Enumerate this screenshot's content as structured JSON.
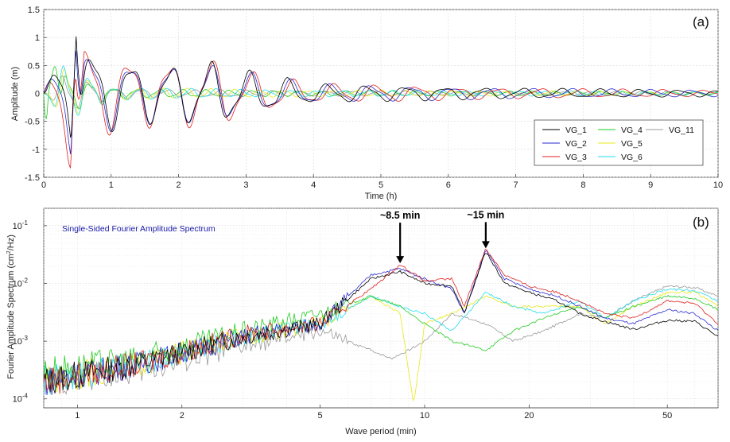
{
  "chart_data": [
    {
      "panel": "(a)",
      "type": "line",
      "xlabel": "Time (h)",
      "ylabel": "Amplitude (m)",
      "xlim": [
        0,
        10
      ],
      "ylim": [
        -1.5,
        1.5
      ],
      "xticks": [
        0,
        1,
        2,
        3,
        4,
        5,
        6,
        7,
        8,
        9,
        10
      ],
      "yticks": [
        -1.5,
        -1,
        -0.5,
        0,
        0.5,
        1,
        1.5
      ],
      "grid": true,
      "legend_position": "bottom-right",
      "series": [
        {
          "name": "VG_1",
          "color": "#000000",
          "x": [
            0,
            0.4,
            0.48,
            0.6,
            1.0,
            1.5,
            2.0,
            2.5,
            3.0,
            4.0,
            5.0,
            6.0,
            7.0,
            8.0,
            9.0,
            10.0
          ],
          "y": [
            0,
            0.95,
            -0.9,
            0.7,
            0.55,
            0.45,
            0.45,
            0.5,
            0.35,
            0.15,
            0.12,
            0.1,
            0.08,
            0.07,
            0.06,
            0.05
          ]
        },
        {
          "name": "VG_2",
          "color": "#2a2ad0",
          "x": [
            0,
            0.4,
            0.48,
            0.6,
            1.0,
            1.5,
            2.0,
            2.5,
            3.0,
            4.0,
            5.0,
            6.0,
            7.0,
            8.0,
            9.0,
            10.0
          ],
          "y": [
            0,
            1.0,
            -0.95,
            0.65,
            0.55,
            0.45,
            0.45,
            0.45,
            0.33,
            0.15,
            0.12,
            0.1,
            0.08,
            0.07,
            0.06,
            0.05
          ]
        },
        {
          "name": "VG_3",
          "color": "#e02020",
          "x": [
            0,
            0.4,
            0.48,
            0.6,
            1.0,
            1.5,
            2.0,
            2.5,
            3.0,
            4.0,
            5.0,
            6.0,
            7.0,
            8.0,
            9.0,
            10.0
          ],
          "y": [
            0,
            1.2,
            -0.85,
            0.75,
            0.6,
            0.5,
            0.5,
            0.55,
            0.35,
            0.15,
            0.13,
            0.1,
            0.08,
            0.07,
            0.06,
            0.05
          ]
        },
        {
          "name": "VG_4",
          "color": "#22cc22",
          "x": [
            0,
            0.05,
            0.3,
            1.0,
            2.0,
            3.0,
            4.0,
            5.0,
            6.0,
            7.0,
            8.0,
            9.0,
            10.0
          ],
          "y": [
            0,
            -1.2,
            0.3,
            0.08,
            0.06,
            0.05,
            0.04,
            0.04,
            0.04,
            0.04,
            0.03,
            0.03,
            0.03
          ]
        },
        {
          "name": "VG_5",
          "color": "#e8e81a",
          "x": [
            0,
            0.3,
            1.0,
            2.0,
            3.0,
            4.0,
            5.0,
            6.0,
            7.0,
            8.0,
            9.0,
            10.0
          ],
          "y": [
            0,
            0.4,
            0.1,
            0.08,
            0.06,
            0.05,
            0.05,
            0.04,
            0.04,
            0.04,
            0.03,
            0.03
          ]
        },
        {
          "name": "VG_6",
          "color": "#22ddee",
          "x": [
            0,
            0.3,
            1.0,
            2.0,
            3.0,
            4.0,
            5.0,
            6.0,
            7.0,
            8.0,
            9.0,
            10.0
          ],
          "y": [
            0,
            0.45,
            0.1,
            0.08,
            0.06,
            0.05,
            0.05,
            0.04,
            0.04,
            0.04,
            0.03,
            0.03
          ]
        },
        {
          "name": "VG_11",
          "color": "#999999",
          "x": [
            0,
            0.3,
            1.0,
            2.0,
            3.0,
            4.0,
            5.0,
            6.0,
            7.0,
            8.0,
            9.0,
            10.0
          ],
          "y": [
            0,
            0.3,
            0.08,
            0.06,
            0.05,
            0.04,
            0.04,
            0.03,
            0.03,
            0.03,
            0.03,
            0.02
          ]
        }
      ]
    },
    {
      "panel": "(b)",
      "type": "line",
      "title": "Single-Sided Fourier Amplitude Spectrum",
      "xlabel": "Wave period (min)",
      "ylabel_main": "Fourier Amplitude Spectrum (cm",
      "ylabel_sup": "2",
      "ylabel_end": "/Hz)",
      "xscale": "log",
      "yscale": "log",
      "xlim": [
        0.8,
        70
      ],
      "ylim": [
        7e-05,
        0.2
      ],
      "xticks": [
        1,
        2,
        5,
        10,
        20,
        50
      ],
      "yticks": [
        0.0001,
        0.001,
        0.01,
        0.1
      ],
      "ytick_base": "10",
      "ytick_exps": [
        "-4",
        "-3",
        "-2",
        "-1"
      ],
      "grid": true,
      "annotations": [
        {
          "text": "~8.5 min",
          "x": 8.5,
          "y": 0.021
        },
        {
          "text": "~15 min",
          "x": 15,
          "y": 0.038
        }
      ],
      "series": [
        {
          "name": "VG_1",
          "color": "#000000",
          "x": [
            0.8,
            1.5,
            3,
            5,
            7,
            8.5,
            10,
            12,
            13,
            15,
            17,
            20,
            24,
            28,
            33,
            40,
            50,
            60,
            70
          ],
          "y": [
            0.0002,
            0.0004,
            0.0012,
            0.002,
            0.012,
            0.016,
            0.01,
            0.009,
            0.003,
            0.036,
            0.01,
            0.007,
            0.005,
            0.003,
            0.0022,
            0.0016,
            0.0023,
            0.0022,
            0.0012
          ]
        },
        {
          "name": "VG_2",
          "color": "#2a2ad0",
          "x": [
            0.8,
            1.5,
            3,
            5,
            7,
            8.5,
            10,
            12,
            13,
            15,
            17,
            20,
            24,
            28,
            33,
            40,
            50,
            60,
            70
          ],
          "y": [
            0.0002,
            0.0004,
            0.0012,
            0.002,
            0.014,
            0.018,
            0.012,
            0.008,
            0.003,
            0.038,
            0.012,
            0.008,
            0.006,
            0.004,
            0.0025,
            0.002,
            0.0035,
            0.003,
            0.0015
          ]
        },
        {
          "name": "VG_3",
          "color": "#e02020",
          "x": [
            0.8,
            1.5,
            3,
            5,
            7,
            8.5,
            10,
            12,
            13,
            15,
            17,
            20,
            24,
            28,
            33,
            40,
            50,
            60,
            70
          ],
          "y": [
            0.0002,
            0.0004,
            0.0013,
            0.002,
            0.008,
            0.021,
            0.011,
            0.012,
            0.004,
            0.04,
            0.014,
            0.009,
            0.007,
            0.005,
            0.003,
            0.0025,
            0.005,
            0.0045,
            0.002
          ]
        },
        {
          "name": "VG_4",
          "color": "#22cc22",
          "x": [
            0.8,
            1.5,
            3,
            5,
            7,
            8.5,
            10,
            12,
            15,
            18,
            22,
            28,
            33,
            40,
            50,
            60,
            70
          ],
          "y": [
            0.0003,
            0.0005,
            0.0015,
            0.003,
            0.006,
            0.004,
            0.002,
            0.001,
            0.0007,
            0.0015,
            0.0025,
            0.004,
            0.0025,
            0.004,
            0.006,
            0.0055,
            0.0035
          ]
        },
        {
          "name": "VG_5",
          "color": "#e8e81a",
          "x": [
            0.8,
            1.5,
            3,
            5,
            7,
            8.5,
            9.3,
            10,
            12,
            15,
            18,
            22,
            28,
            33,
            40,
            50,
            60,
            70
          ],
          "y": [
            0.0002,
            0.0004,
            0.0012,
            0.002,
            0.006,
            0.003,
            8e-05,
            0.002,
            0.003,
            0.006,
            0.004,
            0.004,
            0.004,
            0.002,
            0.004,
            0.007,
            0.007,
            0.004
          ]
        },
        {
          "name": "VG_6",
          "color": "#22ddee",
          "x": [
            0.8,
            1.5,
            3,
            5,
            7,
            8.5,
            10,
            12,
            15,
            18,
            22,
            28,
            33,
            40,
            50,
            60,
            70
          ],
          "y": [
            0.0002,
            0.0004,
            0.0012,
            0.002,
            0.006,
            0.004,
            0.003,
            0.0015,
            0.007,
            0.004,
            0.003,
            0.005,
            0.0025,
            0.005,
            0.008,
            0.0075,
            0.005
          ]
        },
        {
          "name": "VG_11",
          "color": "#999999",
          "x": [
            0.8,
            1.5,
            3,
            5,
            7,
            8,
            9,
            10,
            12,
            15,
            18,
            22,
            28,
            33,
            40,
            50,
            60,
            70
          ],
          "y": [
            0.0002,
            0.0003,
            0.0008,
            0.0015,
            0.0007,
            0.0005,
            0.0007,
            0.001,
            0.003,
            0.002,
            0.001,
            0.0015,
            0.003,
            0.0025,
            0.005,
            0.009,
            0.0085,
            0.006
          ]
        }
      ]
    }
  ]
}
